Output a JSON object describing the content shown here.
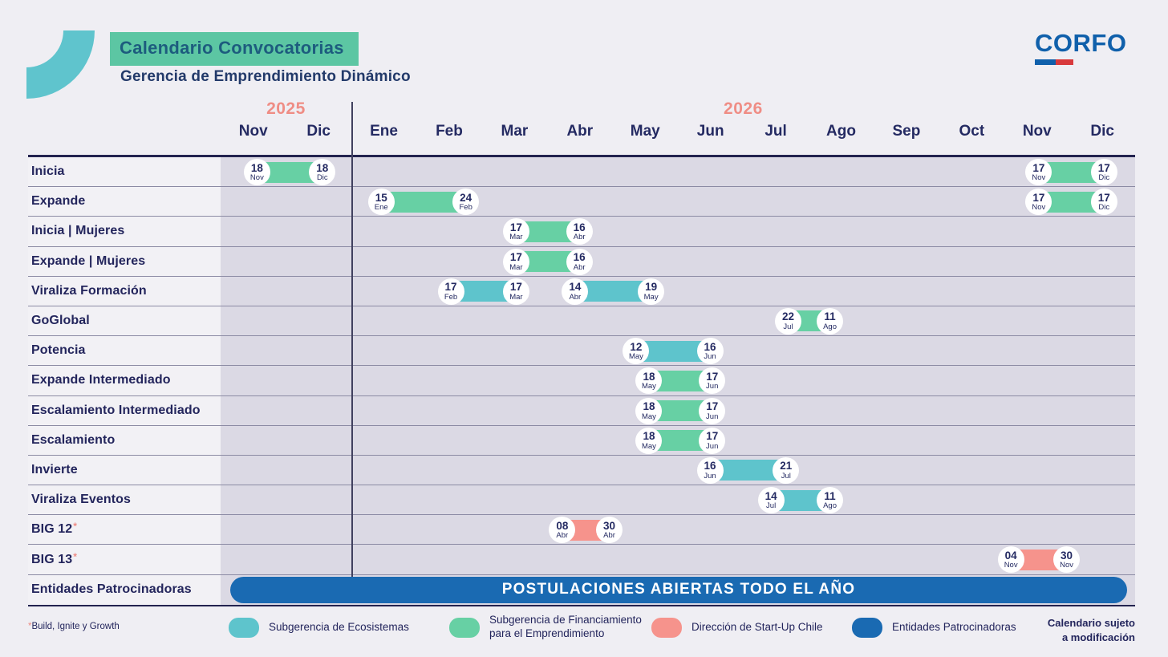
{
  "header": {
    "title": "Calendario Convocatorias",
    "subtitle": "Gerencia de Emprendimiento Dinámico",
    "logo_text": "CORFO"
  },
  "colors": {
    "teal": "#5ec4cc",
    "green": "#67d0a4",
    "salmon": "#f6938c",
    "blue": "#1a6ab2",
    "navy": "#23255c",
    "year_label": "#ef8d85",
    "badge": "#5cc6a3"
  },
  "timeline": {
    "year_groups": [
      {
        "label": "2025",
        "start_col": 0,
        "span": 2
      },
      {
        "label": "2026",
        "start_col": 2,
        "span": 12
      }
    ],
    "months": [
      "Nov",
      "Dic",
      "Ene",
      "Feb",
      "Mar",
      "Abr",
      "May",
      "Jun",
      "Jul",
      "Ago",
      "Sep",
      "Oct",
      "Nov",
      "Dic"
    ]
  },
  "rows": [
    {
      "label": "Inicia",
      "bars": [
        {
          "color": "green",
          "start": {
            "day": "18",
            "month": "Nov",
            "col": 0
          },
          "end": {
            "day": "18",
            "month": "Dic",
            "col": 1
          }
        },
        {
          "color": "green",
          "start": {
            "day": "17",
            "month": "Nov",
            "col": 12
          },
          "end": {
            "day": "17",
            "month": "Dic",
            "col": 13
          }
        }
      ]
    },
    {
      "label": "Expande",
      "bars": [
        {
          "color": "green",
          "start": {
            "day": "15",
            "month": "Ene",
            "col": 2
          },
          "end": {
            "day": "24",
            "month": "Feb",
            "col": 3
          }
        },
        {
          "color": "green",
          "start": {
            "day": "17",
            "month": "Nov",
            "col": 12
          },
          "end": {
            "day": "17",
            "month": "Dic",
            "col": 13
          }
        }
      ]
    },
    {
      "label": "Inicia | Mujeres",
      "bars": [
        {
          "color": "green",
          "start": {
            "day": "17",
            "month": "Mar",
            "col": 4
          },
          "end": {
            "day": "16",
            "month": "Abr",
            "col": 5
          }
        }
      ]
    },
    {
      "label": "Expande | Mujeres",
      "bars": [
        {
          "color": "green",
          "start": {
            "day": "17",
            "month": "Mar",
            "col": 4
          },
          "end": {
            "day": "16",
            "month": "Abr",
            "col": 5
          }
        }
      ]
    },
    {
      "label": "Viraliza Formación",
      "bars": [
        {
          "color": "teal",
          "start": {
            "day": "17",
            "month": "Feb",
            "col": 3
          },
          "end": {
            "day": "17",
            "month": "Mar",
            "col": 4
          }
        },
        {
          "color": "teal",
          "start": {
            "day": "14",
            "month": "Abr",
            "col": 5
          },
          "end": {
            "day": "19",
            "month": "May",
            "col": 6
          }
        }
      ]
    },
    {
      "label": "GoGlobal",
      "bars": [
        {
          "color": "green",
          "start": {
            "day": "22",
            "month": "Jul",
            "col": 8
          },
          "end": {
            "day": "11",
            "month": "Ago",
            "col": 9
          }
        }
      ]
    },
    {
      "label": "Potencia",
      "bars": [
        {
          "color": "teal",
          "start": {
            "day": "12",
            "month": "May",
            "col": 6
          },
          "end": {
            "day": "16",
            "month": "Jun",
            "col": 7
          }
        }
      ]
    },
    {
      "label": "Expande Intermediado",
      "bars": [
        {
          "color": "green",
          "start": {
            "day": "18",
            "month": "May",
            "col": 6
          },
          "end": {
            "day": "17",
            "month": "Jun",
            "col": 7
          }
        }
      ]
    },
    {
      "label": "Escalamiento Intermediado",
      "bars": [
        {
          "color": "green",
          "start": {
            "day": "18",
            "month": "May",
            "col": 6
          },
          "end": {
            "day": "17",
            "month": "Jun",
            "col": 7
          }
        }
      ]
    },
    {
      "label": "Escalamiento",
      "bars": [
        {
          "color": "green",
          "start": {
            "day": "18",
            "month": "May",
            "col": 6
          },
          "end": {
            "day": "17",
            "month": "Jun",
            "col": 7
          }
        }
      ]
    },
    {
      "label": "Invierte",
      "bars": [
        {
          "color": "teal",
          "start": {
            "day": "16",
            "month": "Jun",
            "col": 7
          },
          "end": {
            "day": "21",
            "month": "Jul",
            "col": 8
          }
        }
      ]
    },
    {
      "label": "Viraliza Eventos",
      "bars": [
        {
          "color": "teal",
          "start": {
            "day": "14",
            "month": "Jul",
            "col": 8
          },
          "end": {
            "day": "11",
            "month": "Ago",
            "col": 9
          }
        }
      ]
    },
    {
      "label": "BIG 12",
      "mark": "*",
      "bars": [
        {
          "color": "salmon",
          "start": {
            "day": "08",
            "month": "Abr",
            "col": 5
          },
          "end": {
            "day": "30",
            "month": "Abr",
            "col": 5
          }
        }
      ]
    },
    {
      "label": "BIG 13",
      "mark": "*",
      "bars": [
        {
          "color": "salmon",
          "start": {
            "day": "04",
            "month": "Nov",
            "col": 12
          },
          "end": {
            "day": "30",
            "month": "Nov",
            "col": 12
          }
        }
      ]
    },
    {
      "label": "Entidades Patrocinadoras",
      "banner": {
        "text": "POSTULACIONES ABIERTAS TODO EL AÑO",
        "color": "blue"
      }
    }
  ],
  "legend": [
    {
      "color": "teal",
      "label": "Subgerencia de Ecosistemas"
    },
    {
      "color": "green",
      "label": "Subgerencia de Financiamiento para el Emprendimiento"
    },
    {
      "color": "salmon",
      "label": "Dirección de Start-Up Chile"
    },
    {
      "color": "blue",
      "label": "Entidades Patrocinadoras"
    }
  ],
  "footnote": {
    "marker": "*",
    "text": "Build, Ignite y Growth"
  },
  "disclaimer": [
    "Calendario sujeto",
    "a modificación"
  ],
  "chart_data": {
    "type": "bar",
    "subtype": "gantt-timeline",
    "title": "Calendario Convocatorias",
    "subtitle": "Gerencia de Emprendimiento Dinámico",
    "x_axis": {
      "unit": "month",
      "ticks": [
        "Nov 2025",
        "Dic 2025",
        "Ene 2026",
        "Feb 2026",
        "Mar 2026",
        "Abr 2026",
        "May 2026",
        "Jun 2026",
        "Jul 2026",
        "Ago 2026",
        "Sep 2026",
        "Oct 2026",
        "Nov 2026",
        "Dic 2026"
      ]
    },
    "legend_position": "bottom",
    "series": [
      {
        "name": "Inicia",
        "category": "Subgerencia de Financiamiento para el Emprendimiento",
        "windows": [
          [
            "18 Nov 2025",
            "18 Dic 2025"
          ],
          [
            "17 Nov 2026",
            "17 Dic 2026"
          ]
        ]
      },
      {
        "name": "Expande",
        "category": "Subgerencia de Financiamiento para el Emprendimiento",
        "windows": [
          [
            "15 Ene 2026",
            "24 Feb 2026"
          ],
          [
            "17 Nov 2026",
            "17 Dic 2026"
          ]
        ]
      },
      {
        "name": "Inicia | Mujeres",
        "category": "Subgerencia de Financiamiento para el Emprendimiento",
        "windows": [
          [
            "17 Mar 2026",
            "16 Abr 2026"
          ]
        ]
      },
      {
        "name": "Expande | Mujeres",
        "category": "Subgerencia de Financiamiento para el Emprendimiento",
        "windows": [
          [
            "17 Mar 2026",
            "16 Abr 2026"
          ]
        ]
      },
      {
        "name": "Viraliza Formación",
        "category": "Subgerencia de Ecosistemas",
        "windows": [
          [
            "17 Feb 2026",
            "17 Mar 2026"
          ],
          [
            "14 Abr 2026",
            "19 May 2026"
          ]
        ]
      },
      {
        "name": "GoGlobal",
        "category": "Subgerencia de Financiamiento para el Emprendimiento",
        "windows": [
          [
            "22 Jul 2026",
            "11 Ago 2026"
          ]
        ]
      },
      {
        "name": "Potencia",
        "category": "Subgerencia de Ecosistemas",
        "windows": [
          [
            "12 May 2026",
            "16 Jun 2026"
          ]
        ]
      },
      {
        "name": "Expande Intermediado",
        "category": "Subgerencia de Financiamiento para el Emprendimiento",
        "windows": [
          [
            "18 May 2026",
            "17 Jun 2026"
          ]
        ]
      },
      {
        "name": "Escalamiento Intermediado",
        "category": "Subgerencia de Financiamiento para el Emprendimiento",
        "windows": [
          [
            "18 May 2026",
            "17 Jun 2026"
          ]
        ]
      },
      {
        "name": "Escalamiento",
        "category": "Subgerencia de Financiamiento para el Emprendimiento",
        "windows": [
          [
            "18 May 2026",
            "17 Jun 2026"
          ]
        ]
      },
      {
        "name": "Invierte",
        "category": "Subgerencia de Ecosistemas",
        "windows": [
          [
            "16 Jun 2026",
            "21 Jul 2026"
          ]
        ]
      },
      {
        "name": "Viraliza Eventos",
        "category": "Subgerencia de Ecosistemas",
        "windows": [
          [
            "14 Jul 2026",
            "11 Ago 2026"
          ]
        ]
      },
      {
        "name": "BIG 12*",
        "category": "Dirección de Start-Up Chile",
        "windows": [
          [
            "08 Abr 2026",
            "30 Abr 2026"
          ]
        ]
      },
      {
        "name": "BIG 13*",
        "category": "Dirección de Start-Up Chile",
        "windows": [
          [
            "04 Nov 2026",
            "30 Nov 2026"
          ]
        ]
      },
      {
        "name": "Entidades Patrocinadoras",
        "category": "Entidades Patrocinadoras",
        "windows": "POSTULACIONES ABIERTAS TODO EL AÑO"
      }
    ]
  }
}
